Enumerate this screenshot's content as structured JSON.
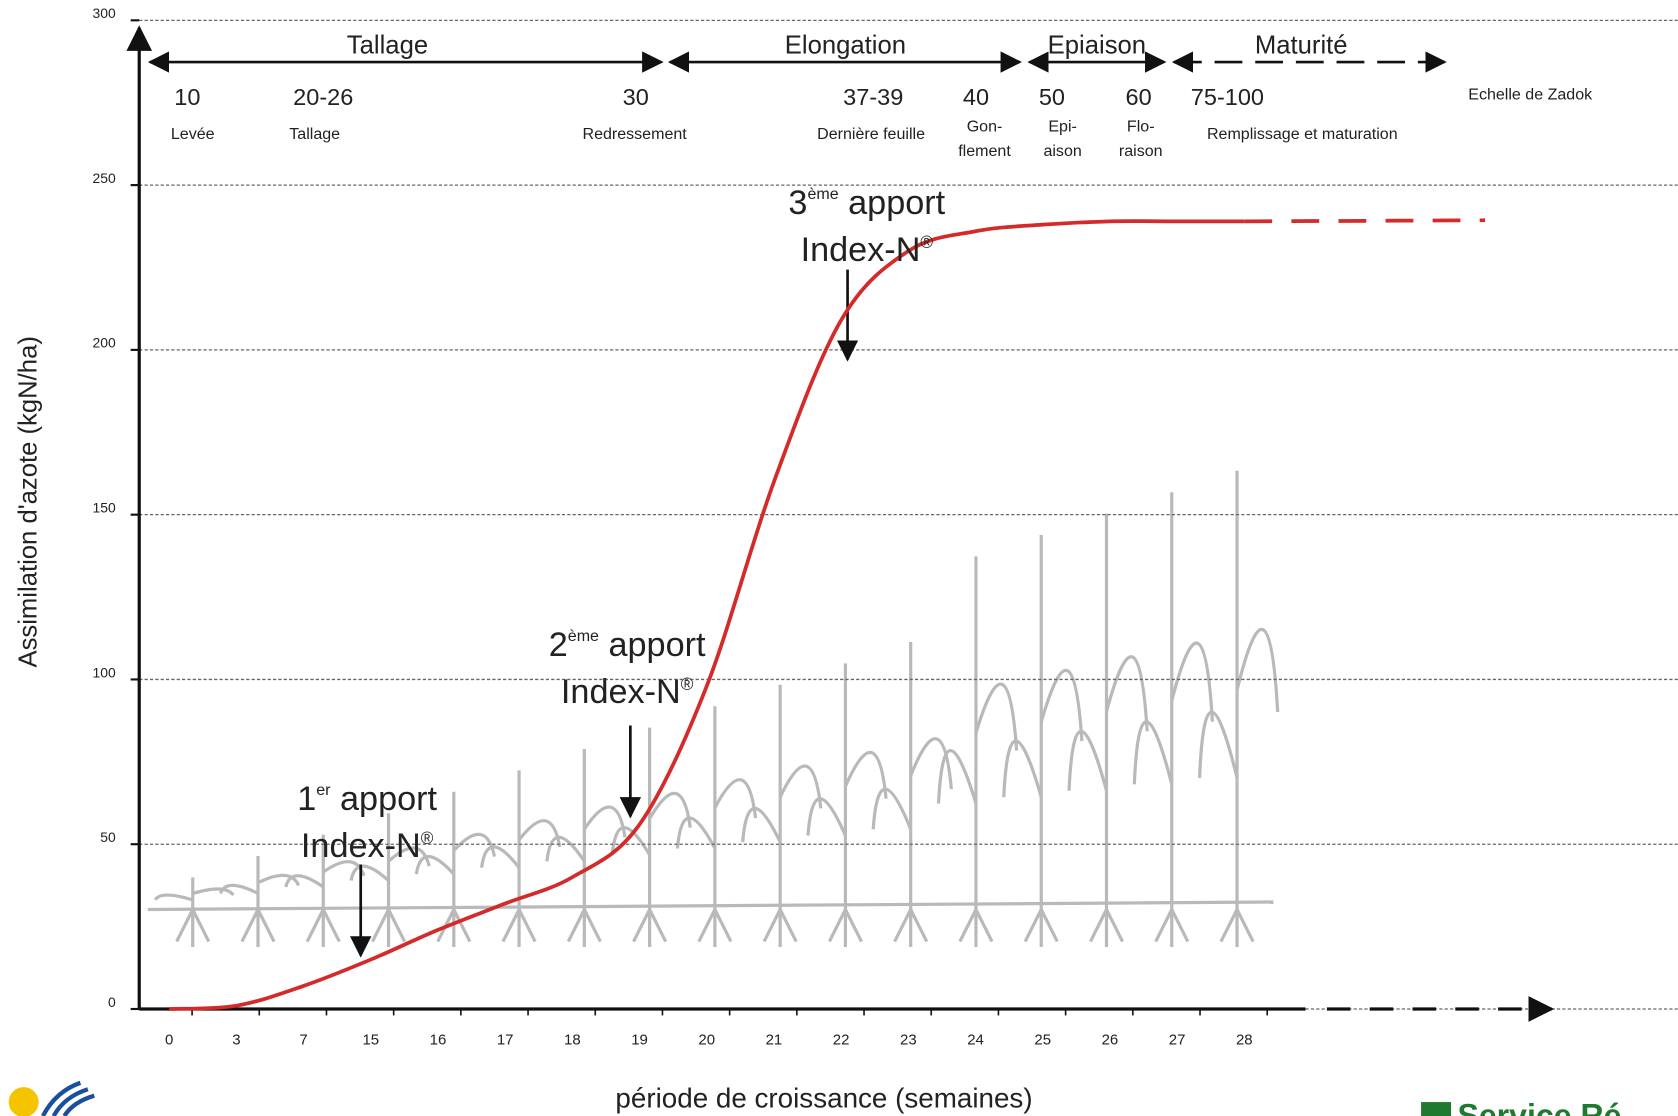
{
  "chart_data": {
    "type": "line",
    "y_axis_label": "Assimilation d'azote (kgN/ha)",
    "x_axis_label": "période de croissance (semaines)",
    "categories": [
      "0",
      "3",
      "7",
      "15",
      "16",
      "17",
      "18",
      "19",
      "20",
      "21",
      "22",
      "23",
      "24",
      "25",
      "26",
      "27",
      "28"
    ],
    "series": [
      {
        "color": "#d42a2a",
        "values": [
          0,
          1,
          7,
          15,
          24,
          32,
          40,
          56,
          98,
          160,
          209,
          230,
          236,
          238,
          239,
          239,
          239
        ]
      }
    ],
    "ylim": [
      0,
      300
    ],
    "yticks": [
      0,
      50,
      100,
      150,
      200,
      250,
      300
    ],
    "grid": true,
    "phases": [
      "Tallage",
      "Elongation",
      "Epiaison",
      "Maturité"
    ],
    "zadok_scale_label": "Echelle de Zadok",
    "zadok_stages": [
      {
        "code": "10",
        "name": [
          "Levée"
        ]
      },
      {
        "code": "20-26",
        "name": [
          "Tallage"
        ]
      },
      {
        "code": "30",
        "name": [
          "Redressement"
        ]
      },
      {
        "code": "37-39",
        "name": [
          "Dernière feuille"
        ]
      },
      {
        "code": "40",
        "name": [
          "Gon-",
          "flement"
        ]
      },
      {
        "code": "50",
        "name": [
          "Epi-",
          "aison"
        ]
      },
      {
        "code": "60",
        "name": [
          "Flo-",
          "raison"
        ]
      },
      {
        "code": "75-100",
        "name": [
          "Remplissage et maturation"
        ]
      }
    ],
    "annotations": [
      {
        "ordinal": "1",
        "sup": "er",
        "word": " apport",
        "line2": "Index-N",
        "line2_sup": "®"
      },
      {
        "ordinal": "2",
        "sup": "ème",
        "word": " apport",
        "line2": "Index-N",
        "line2_sup": "®"
      },
      {
        "ordinal": "3",
        "sup": "ème",
        "word": " apport",
        "line2": "Index-N",
        "line2_sup": "®"
      }
    ],
    "logo_text": "Service Ré"
  }
}
